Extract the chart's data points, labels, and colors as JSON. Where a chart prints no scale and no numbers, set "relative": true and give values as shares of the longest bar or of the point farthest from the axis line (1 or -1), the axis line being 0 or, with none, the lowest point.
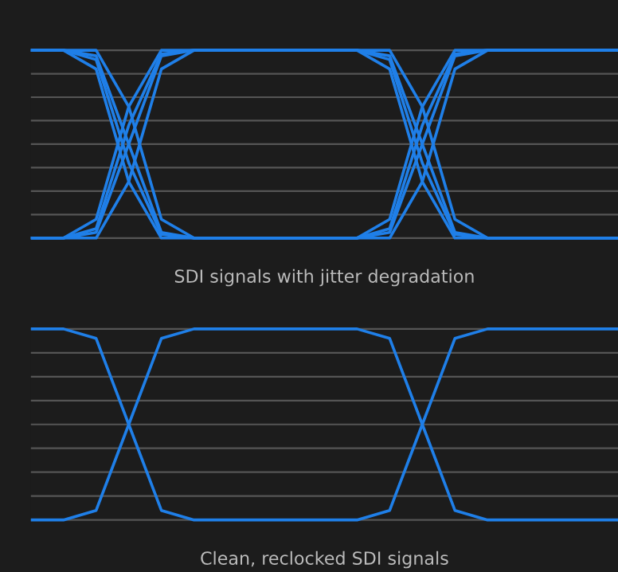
{
  "chart_data": [
    {
      "type": "line",
      "relative": true,
      "grid": true,
      "xlabel": "SDI signals with jitter degradation",
      "categories": [
        null,
        null,
        null,
        null,
        null,
        null,
        null,
        null,
        null,
        null,
        null,
        null,
        null,
        null,
        null,
        null,
        null,
        null,
        null
      ],
      "series": [
        {
          "color": "#1f7fe8",
          "values": [
            1,
            1,
            0.97,
            0.5,
            0.03,
            0,
            0,
            0,
            0,
            0,
            0,
            0.03,
            0.5,
            0.97,
            1,
            1,
            1,
            1,
            1
          ]
        },
        {
          "color": "#1f7fe8",
          "values": [
            1,
            1,
            0.9,
            0.3,
            0,
            0,
            0,
            0,
            0,
            0,
            0,
            0.1,
            0.7,
            1,
            1,
            1,
            1,
            1,
            1
          ]
        },
        {
          "color": "#1f7fe8",
          "values": [
            1,
            1,
            1,
            0.7,
            0.1,
            0,
            0,
            0,
            0,
            0,
            0,
            0,
            0.3,
            0.9,
            1,
            1,
            1,
            1,
            1
          ]
        },
        {
          "color": "#1f7fe8",
          "values": [
            1,
            1,
            0.95,
            0.4,
            0.02,
            0,
            0,
            0,
            0,
            0,
            0,
            0.05,
            0.6,
            0.98,
            1,
            1,
            1,
            1,
            1
          ]
        },
        {
          "color": "#1f7fe8",
          "values": [
            0,
            0,
            0.03,
            0.5,
            0.97,
            1,
            1,
            1,
            1,
            1,
            1,
            0.97,
            0.5,
            0.03,
            0,
            0,
            0,
            0,
            0
          ]
        },
        {
          "color": "#1f7fe8",
          "values": [
            0,
            0,
            0.1,
            0.7,
            1,
            1,
            1,
            1,
            1,
            1,
            1,
            0.9,
            0.3,
            0,
            0,
            0,
            0,
            0,
            0
          ]
        },
        {
          "color": "#1f7fe8",
          "values": [
            0,
            0,
            0,
            0.3,
            0.9,
            1,
            1,
            1,
            1,
            1,
            1,
            1,
            0.7,
            0.1,
            0,
            0,
            0,
            0,
            0
          ]
        },
        {
          "color": "#1f7fe8",
          "values": [
            0,
            0,
            0.05,
            0.6,
            0.98,
            1,
            1,
            1,
            1,
            1,
            1,
            0.95,
            0.4,
            0.02,
            0,
            0,
            0,
            0,
            0
          ]
        }
      ]
    },
    {
      "type": "line",
      "relative": true,
      "grid": true,
      "xlabel": "Clean, reclocked SDI signals",
      "categories": [
        null,
        null,
        null,
        null,
        null,
        null,
        null,
        null,
        null,
        null,
        null,
        null,
        null,
        null,
        null,
        null,
        null,
        null,
        null
      ],
      "series": [
        {
          "color": "#1f7fe8",
          "values": [
            1,
            1,
            0.95,
            0.5,
            0.05,
            0,
            0,
            0,
            0,
            0,
            0,
            0.05,
            0.5,
            0.95,
            1,
            1,
            1,
            1,
            1
          ]
        },
        {
          "color": "#1f7fe8",
          "values": [
            0,
            0,
            0.05,
            0.5,
            0.95,
            1,
            1,
            1,
            1,
            1,
            1,
            0.95,
            0.5,
            0.05,
            0,
            0,
            0,
            0,
            0
          ]
        }
      ]
    }
  ]
}
